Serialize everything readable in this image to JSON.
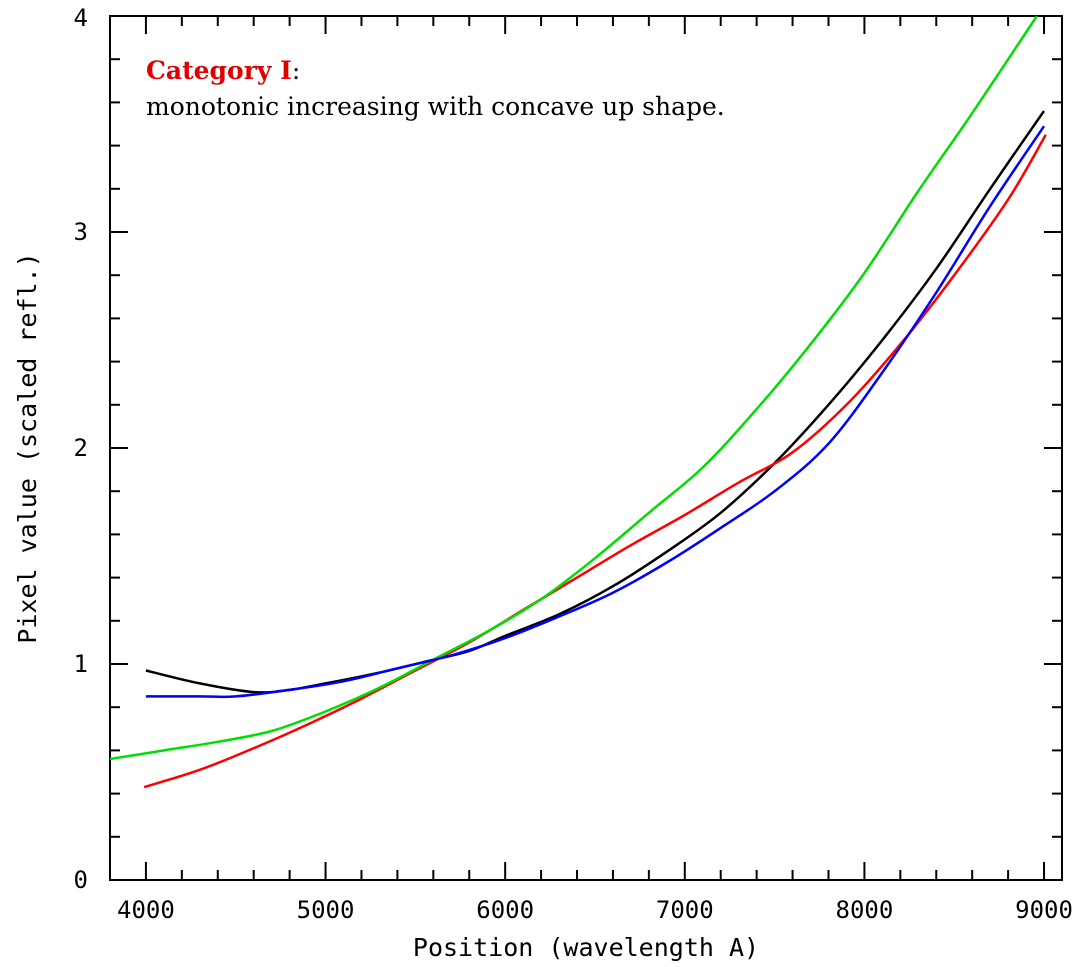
{
  "chart_data": {
    "type": "line",
    "xlabel": "Position (wavelength A)",
    "ylabel": "Pixel value (scaled refl.)",
    "xlim": [
      3800,
      9100
    ],
    "ylim": [
      0,
      4
    ],
    "x_ticks": [
      4000,
      5000,
      6000,
      7000,
      8000,
      9000
    ],
    "y_ticks": [
      0,
      1,
      2,
      3,
      4
    ],
    "grid": false,
    "annotation": {
      "title": "Category I",
      "colon": ":",
      "text": "monotonic increasing with concave up shape."
    },
    "series": [
      {
        "color": "#000000",
        "x": [
          4000,
          4300,
          4600,
          4800,
          5000,
          5300,
          5600,
          5800,
          6000,
          6300,
          6600,
          6900,
          7200,
          7500,
          7800,
          8100,
          8400,
          8700,
          9000
        ],
        "y": [
          0.97,
          0.91,
          0.87,
          0.88,
          0.91,
          0.96,
          1.02,
          1.06,
          1.13,
          1.23,
          1.36,
          1.52,
          1.7,
          1.93,
          2.2,
          2.5,
          2.83,
          3.2,
          3.56
        ]
      },
      {
        "color": "#ff0000",
        "x": [
          3990,
          4300,
          4600,
          4900,
          5200,
          5500,
          5800,
          6100,
          6400,
          6700,
          7000,
          7300,
          7600,
          7900,
          8200,
          8500,
          8800,
          9010
        ],
        "y": [
          0.43,
          0.51,
          0.61,
          0.72,
          0.84,
          0.97,
          1.1,
          1.25,
          1.4,
          1.55,
          1.69,
          1.84,
          1.98,
          2.2,
          2.48,
          2.8,
          3.15,
          3.45
        ]
      },
      {
        "color": "#00dd00",
        "x": [
          3800,
          4100,
          4400,
          4700,
          5000,
          5300,
          5600,
          5900,
          6200,
          6500,
          6800,
          7100,
          7400,
          7700,
          8000,
          8300,
          8600,
          8960
        ],
        "y": [
          0.56,
          0.6,
          0.64,
          0.69,
          0.78,
          0.89,
          1.02,
          1.15,
          1.3,
          1.49,
          1.7,
          1.91,
          2.18,
          2.48,
          2.81,
          3.19,
          3.55,
          4.0
        ]
      },
      {
        "color": "#0000ff",
        "x": [
          4000,
          4300,
          4500,
          4800,
          5100,
          5400,
          5700,
          6000,
          6300,
          6600,
          6900,
          7200,
          7500,
          7800,
          8100,
          8400,
          8700,
          9000
        ],
        "y": [
          0.85,
          0.85,
          0.85,
          0.88,
          0.92,
          0.98,
          1.04,
          1.12,
          1.22,
          1.33,
          1.47,
          1.63,
          1.8,
          2.02,
          2.35,
          2.72,
          3.12,
          3.49
        ]
      }
    ]
  }
}
